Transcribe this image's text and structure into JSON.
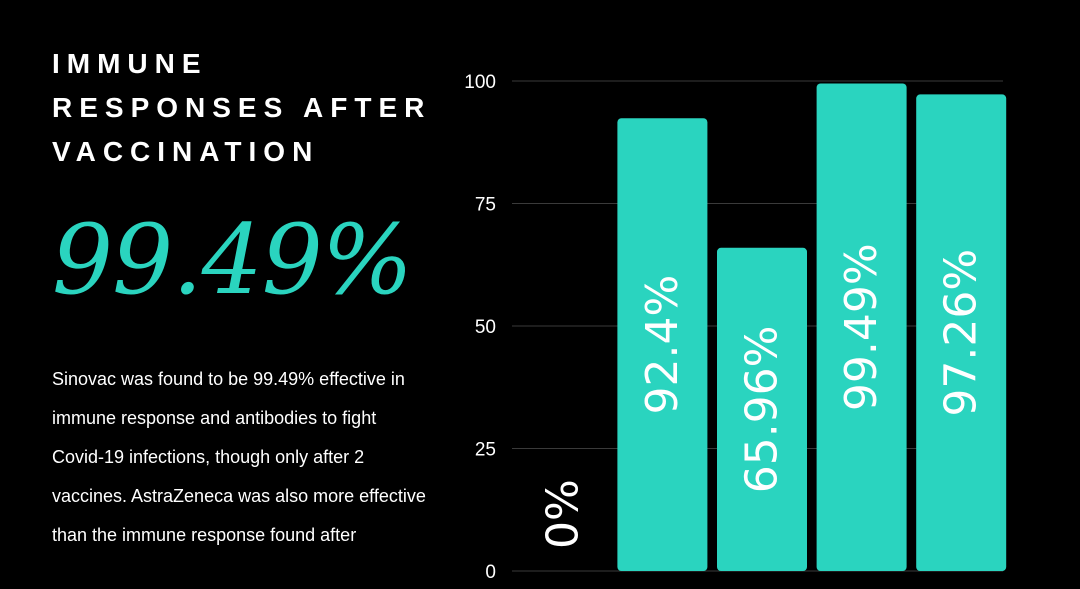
{
  "title_lines": [
    "IMMUNE",
    "RESPONSES AFTER",
    "VACCINATION"
  ],
  "highlight_value": "99.49%",
  "description": "Sinovac was found to be 99.49% effective in immune response and antibodies to fight Covid-19 infections, though only after 2 vaccines. AstraZeneca was also more effective than the immune response found after",
  "colors": {
    "accent": "#2ad4bf",
    "background": "#000000",
    "text": "#ffffff",
    "grid": "#3a3a3a"
  },
  "chart_data": {
    "type": "bar",
    "categories": [
      "",
      "",
      "",
      "",
      ""
    ],
    "values": [
      0,
      92.4,
      65.96,
      99.49,
      97.26
    ],
    "labels": [
      "0%",
      "92.4%",
      "65.96%",
      "99.49%",
      "97.26%"
    ],
    "ylim": [
      0,
      100
    ],
    "yticks": [
      0,
      25,
      50,
      75,
      100
    ],
    "grid": true,
    "title": "",
    "xlabel": "",
    "ylabel": ""
  }
}
